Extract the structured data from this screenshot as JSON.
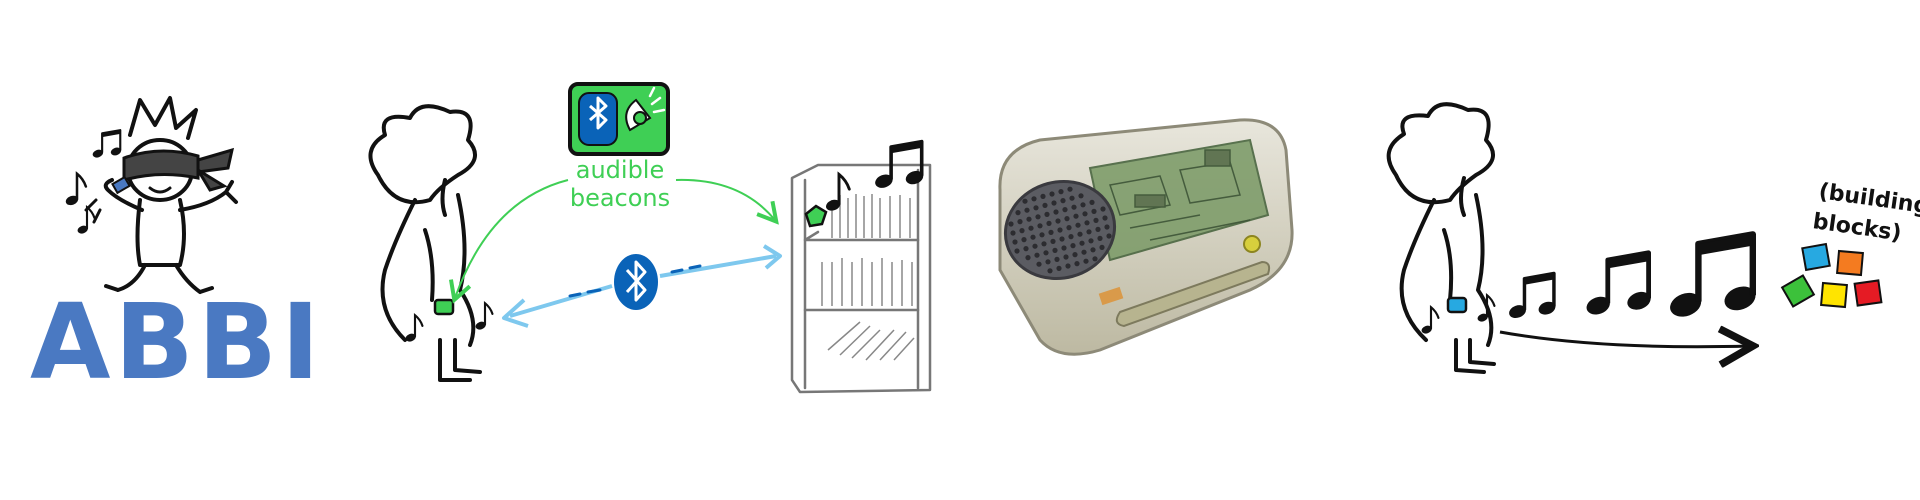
{
  "logo": {
    "text": "ABBI"
  },
  "beacon": {
    "line1": "audible",
    "line2": "beacons"
  },
  "blocks_label": {
    "line1": "(building",
    "line2": "blocks)"
  },
  "colors": {
    "logo_blue": "#4a79c2",
    "beacon_green": "#3fcf55",
    "link_blue": "#7ec8ee",
    "bluetooth_blue": "#0a63b8",
    "block_cyan": "#27a9e1",
    "block_orange": "#f47b20",
    "block_green": "#3cc13b",
    "block_yellow": "#ffe400",
    "block_red": "#e51b24"
  },
  "icons": [
    "music-note-icon",
    "bluetooth-icon",
    "speaker-icon"
  ]
}
